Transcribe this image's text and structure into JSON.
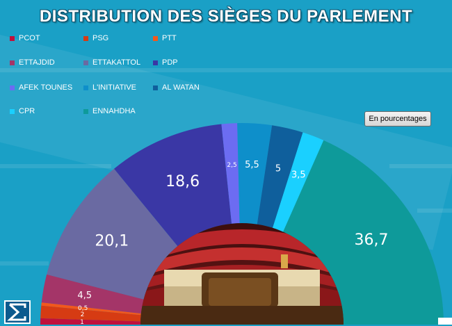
{
  "title": "DISTRIBUTION DES SIÈGES DU PARLEMENT",
  "toggle_button": {
    "label": "En pourcentages"
  },
  "chart_data": {
    "type": "pie",
    "variant": "semicircle-donut",
    "title": "DISTRIBUTION DES SIÈGES DU PARLEMENT",
    "legend_placement": "top-left",
    "series": [
      {
        "name": "PCOT",
        "value": 1,
        "label": "1",
        "color": "#c0103c"
      },
      {
        "name": "PSG",
        "value": 2,
        "label": "2",
        "color": "#d63b13"
      },
      {
        "name": "PTT",
        "value": 0.5,
        "label": "0,5",
        "color": "#f2581c"
      },
      {
        "name": "ETTAJDID",
        "value": 4.5,
        "label": "4,5",
        "color": "#a43568"
      },
      {
        "name": "ETTAKATTOL",
        "value": 20.1,
        "label": "20,1",
        "color": "#6a6aa2"
      },
      {
        "name": "PDP",
        "value": 18.6,
        "label": "18,6",
        "color": "#3a37a5"
      },
      {
        "name": "AFEK TOUNES",
        "value": 2.5,
        "label": "2,5",
        "color": "#6c6cf2"
      },
      {
        "name": "L'INITIATIVE",
        "value": 5.5,
        "label": "5,5",
        "color": "#0e8fca"
      },
      {
        "name": "AL WATAN",
        "value": 5,
        "label": "5",
        "color": "#0f5f9c"
      },
      {
        "name": "CPR",
        "value": 3.5,
        "label": "3,5",
        "color": "#1ad0ff"
      },
      {
        "name": "ENNAHDHA",
        "value": 36.7,
        "label": "36,7",
        "color": "#0e9a9a"
      }
    ]
  }
}
